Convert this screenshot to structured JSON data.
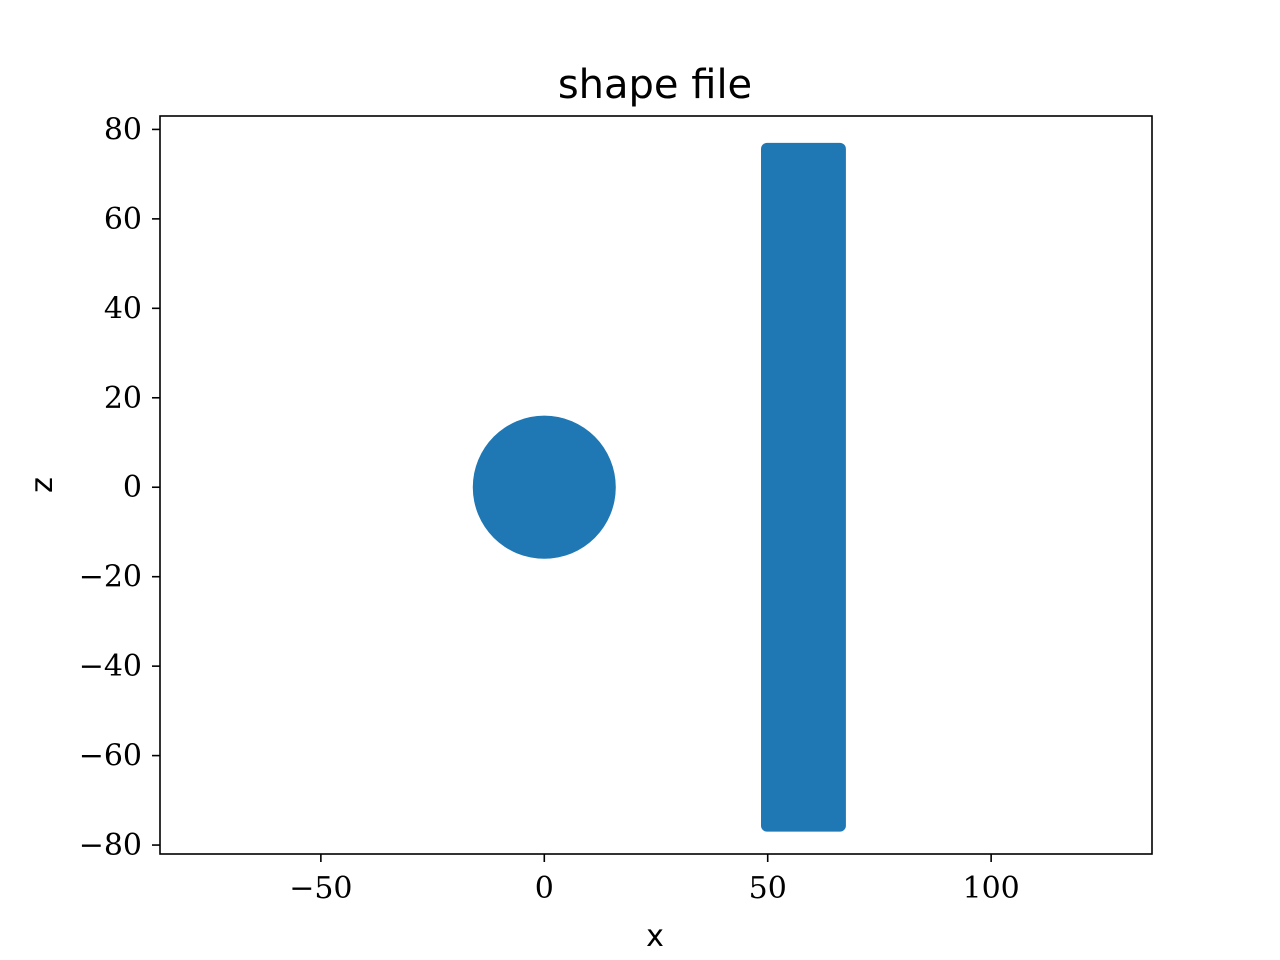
{
  "chart_data": {
    "type": "scatter",
    "title": "shape file",
    "xlabel": "x",
    "ylabel": "z",
    "xlim": [
      -86,
      136
    ],
    "ylim": [
      -82,
      83
    ],
    "xticks": [
      -50,
      0,
      50,
      100
    ],
    "yticks": [
      -80,
      -60,
      -40,
      -20,
      0,
      20,
      40,
      60,
      80
    ],
    "xtick_labels": [
      "−50",
      "0",
      "50",
      "100"
    ],
    "ytick_labels": [
      "−80",
      "−60",
      "−40",
      "−20",
      "0",
      "20",
      "40",
      "60",
      "80"
    ],
    "grid": false,
    "marker_color": "#1f77b4",
    "series": [
      {
        "shape": "disk",
        "center": [
          0,
          0
        ],
        "radius": 16
      },
      {
        "shape": "slab",
        "x": [
          48.5,
          67.5
        ],
        "z": [
          -77,
          77
        ]
      }
    ]
  }
}
